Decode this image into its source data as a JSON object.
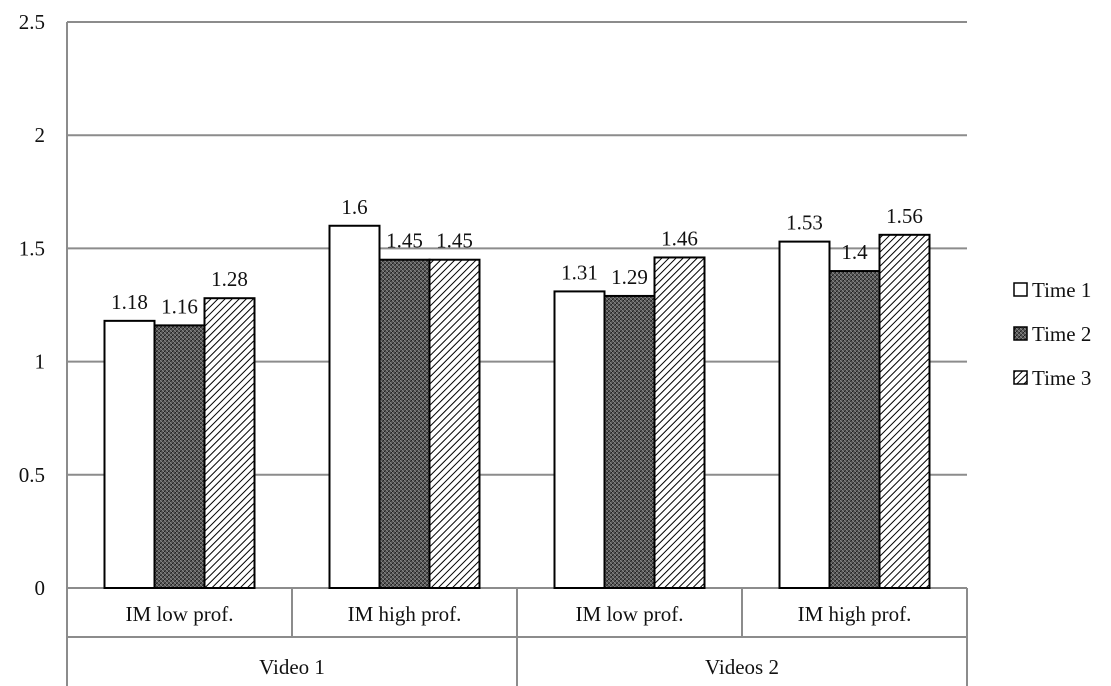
{
  "chart_data": {
    "type": "bar",
    "title": "",
    "xlabel": "",
    "ylabel": "",
    "ylim": [
      0,
      2.5
    ],
    "yticks": [
      "0",
      "0.5",
      "1",
      "1.5",
      "2",
      "2.5"
    ],
    "grid": true,
    "legend_position": "right",
    "categories": [
      "IM low prof.",
      "IM high prof.",
      "IM low prof.",
      "IM high prof."
    ],
    "groups": [
      {
        "label": "Video 1",
        "span": 2
      },
      {
        "label": "Videos 2",
        "span": 2
      }
    ],
    "series": [
      {
        "name": "Time 1",
        "pattern": "solid-white",
        "values": [
          1.18,
          1.6,
          1.31,
          1.53
        ],
        "labels": [
          "1.18",
          "1.6",
          "1.31",
          "1.53"
        ]
      },
      {
        "name": "Time 2",
        "pattern": "dense-dots",
        "values": [
          1.16,
          1.45,
          1.29,
          1.4
        ],
        "labels": [
          "1.16",
          "1.45",
          "1.29",
          "1.4"
        ]
      },
      {
        "name": "Time 3",
        "pattern": "diagonal-hatch",
        "values": [
          1.28,
          1.45,
          1.46,
          1.56
        ],
        "labels": [
          "1.28",
          "1.45",
          "1.46",
          "1.56"
        ]
      }
    ],
    "colors": {
      "gridline": "#8c8c8c",
      "bar_outline": "#000000",
      "axis": "#8c8c8c"
    }
  }
}
